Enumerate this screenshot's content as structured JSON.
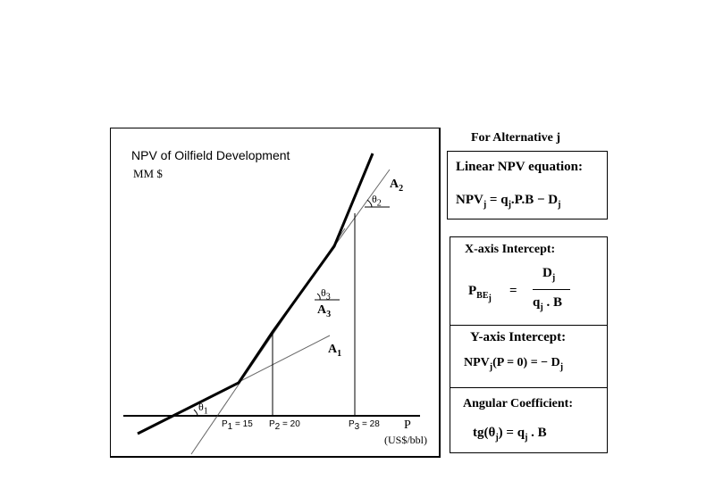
{
  "chart": {
    "title": "NPV of Oilfield Development",
    "y_unit": "MM $",
    "x_axis_label": "P",
    "x_axis_unit": "(US$/bbl)",
    "line_labels": {
      "a1": "A",
      "a1_sub": "1",
      "a2": "A",
      "a2_sub": "2",
      "a3": "A",
      "a3_sub": "3"
    },
    "angle_labels": {
      "t1": "θ",
      "t1_sub": "1",
      "t2": "θ",
      "t2_sub": "2",
      "t3": "θ",
      "t3_sub": "3"
    },
    "breakpoints": [
      {
        "p": "P",
        "sub": "1",
        "eq": " = 15"
      },
      {
        "p": "P",
        "sub": "2",
        "eq": " = 20"
      },
      {
        "p": "P",
        "sub": "3",
        "eq": " = 28"
      }
    ]
  },
  "panel_title": "For Alternative j",
  "linear_eq": {
    "title": "Linear NPV equation:",
    "lhs": "NPV",
    "lhs_sub": "j",
    "rhs_a": " = q",
    "rhs_sub": "j",
    "rhs_b": ".P.B − D",
    "rhs_sub2": "j"
  },
  "x_intercept": {
    "title": "X-axis Intercept:",
    "lhs": "P",
    "lhs_sub": "BE",
    "lhs_subsub": "j",
    "equals": "=",
    "num": "D",
    "num_sub": "j",
    "den": "q",
    "den_sub": "j",
    "den_b": " . B"
  },
  "y_intercept": {
    "title": "Y-axis Intercept:",
    "lhs": "NPV",
    "lhs_sub": "j",
    "lhs_b": "(P = 0) = − D",
    "lhs_sub2": "j"
  },
  "angular": {
    "title": "Angular Coefficient:",
    "lhs": "tg(θ",
    "lhs_sub": "j",
    "lhs_b": ")  =  q",
    "lhs_sub2": "j",
    "lhs_c": " . B"
  }
}
